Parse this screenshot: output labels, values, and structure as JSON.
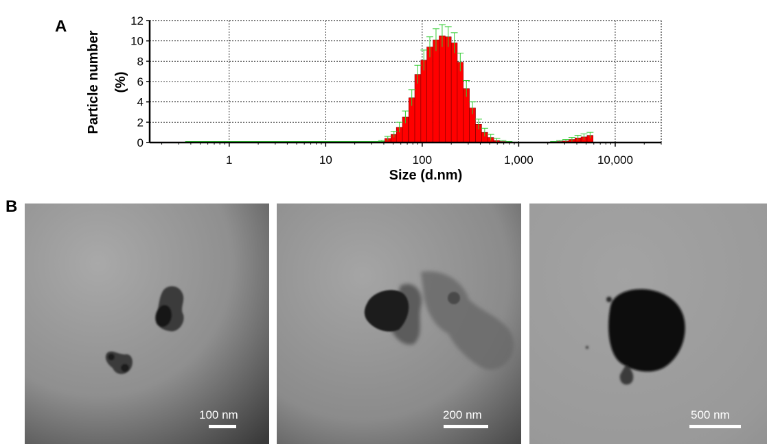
{
  "panel_labels": {
    "a": "A",
    "b": "B"
  },
  "chart_data": {
    "type": "bar",
    "xscale": "log",
    "xlabel": "Size (d.nm)",
    "ylabel_line1": "Particle number",
    "ylabel_line2": "(%)",
    "ylim": [
      0,
      12
    ],
    "xlim": [
      0.15,
      30000
    ],
    "xticks": [
      {
        "value": 1,
        "label": "1"
      },
      {
        "value": 10,
        "label": "10"
      },
      {
        "value": 100,
        "label": "100"
      },
      {
        "value": 1000,
        "label": "1,000"
      },
      {
        "value": 10000,
        "label": "10,000"
      }
    ],
    "yticks": [
      0,
      2,
      4,
      6,
      8,
      10,
      12
    ],
    "grid": true,
    "bar_color": "#ff0000",
    "errorbar_color": "#33cc33",
    "series": [
      {
        "size_nm": [
          38,
          44,
          51,
          58,
          67,
          78,
          90,
          104,
          120,
          139,
          161,
          186,
          215,
          248,
          287,
          332,
          384,
          444,
          513,
          593,
          686,
          793,
          917
        ],
        "values": [
          0.1,
          0.4,
          0.8,
          1.5,
          2.5,
          4.4,
          6.7,
          8.1,
          9.4,
          10.1,
          10.5,
          10.4,
          9.8,
          7.9,
          5.3,
          3.4,
          1.8,
          1.0,
          0.5,
          0.2,
          0.1,
          0.05,
          0.02
        ],
        "errors": [
          0.1,
          0.2,
          0.3,
          0.5,
          0.6,
          0.8,
          0.9,
          1.0,
          1.0,
          1.1,
          1.1,
          1.0,
          1.0,
          0.9,
          0.8,
          0.6,
          0.5,
          0.4,
          0.3,
          0.2,
          0.1,
          0.05,
          0.02
        ]
      },
      {
        "size_nm": [
          2300,
          2660,
          3080,
          3560,
          4110,
          4750,
          5490
        ],
        "values": [
          0.05,
          0.1,
          0.15,
          0.3,
          0.45,
          0.55,
          0.7
        ],
        "errors": [
          0.05,
          0.1,
          0.15,
          0.2,
          0.25,
          0.3,
          0.3
        ]
      }
    ]
  },
  "tem_panels": [
    {
      "scale_label": "100 nm"
    },
    {
      "scale_label": "200 nm"
    },
    {
      "scale_label": "500 nm"
    }
  ]
}
